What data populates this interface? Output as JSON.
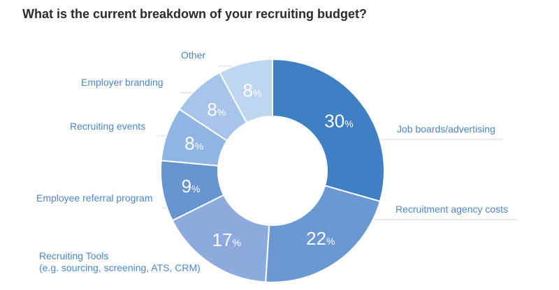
{
  "chart_data": {
    "type": "pie",
    "title": "What is the current breakdown of your recruiting budget?",
    "categories": [
      "Job boards/advertising",
      "Recruitment agency costs",
      "Recruiting Tools\n(e.g. sourcing, screening, ATS, CRM)",
      "Employee referral program",
      "Recruiting events",
      "Employer branding",
      "Other"
    ],
    "values": [
      30,
      22,
      17,
      9,
      8,
      8,
      8
    ],
    "value_suffix": "%",
    "colors": [
      "#3f7fc3",
      "#6a98d3",
      "#8daade",
      "#6695cf",
      "#8eb5e3",
      "#a7c5ea",
      "#bfd6f1"
    ],
    "donut": true
  }
}
